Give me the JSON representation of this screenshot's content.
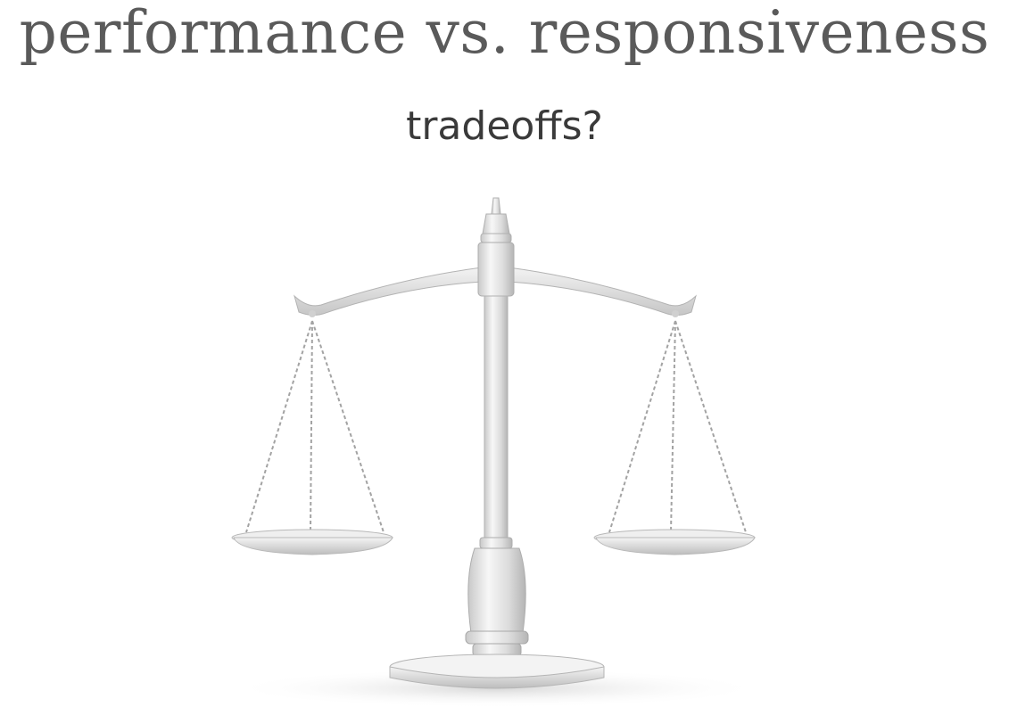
{
  "slide": {
    "title": "performance vs. responsiveness",
    "subtitle": "tradeoffs?",
    "image": {
      "icon": "balance-scale-icon",
      "colors": {
        "metal_light": "#f2f2f2",
        "metal_mid": "#d4d4d4",
        "metal_dark": "#a9a9a9",
        "chain": "#9e9e9e"
      }
    }
  }
}
